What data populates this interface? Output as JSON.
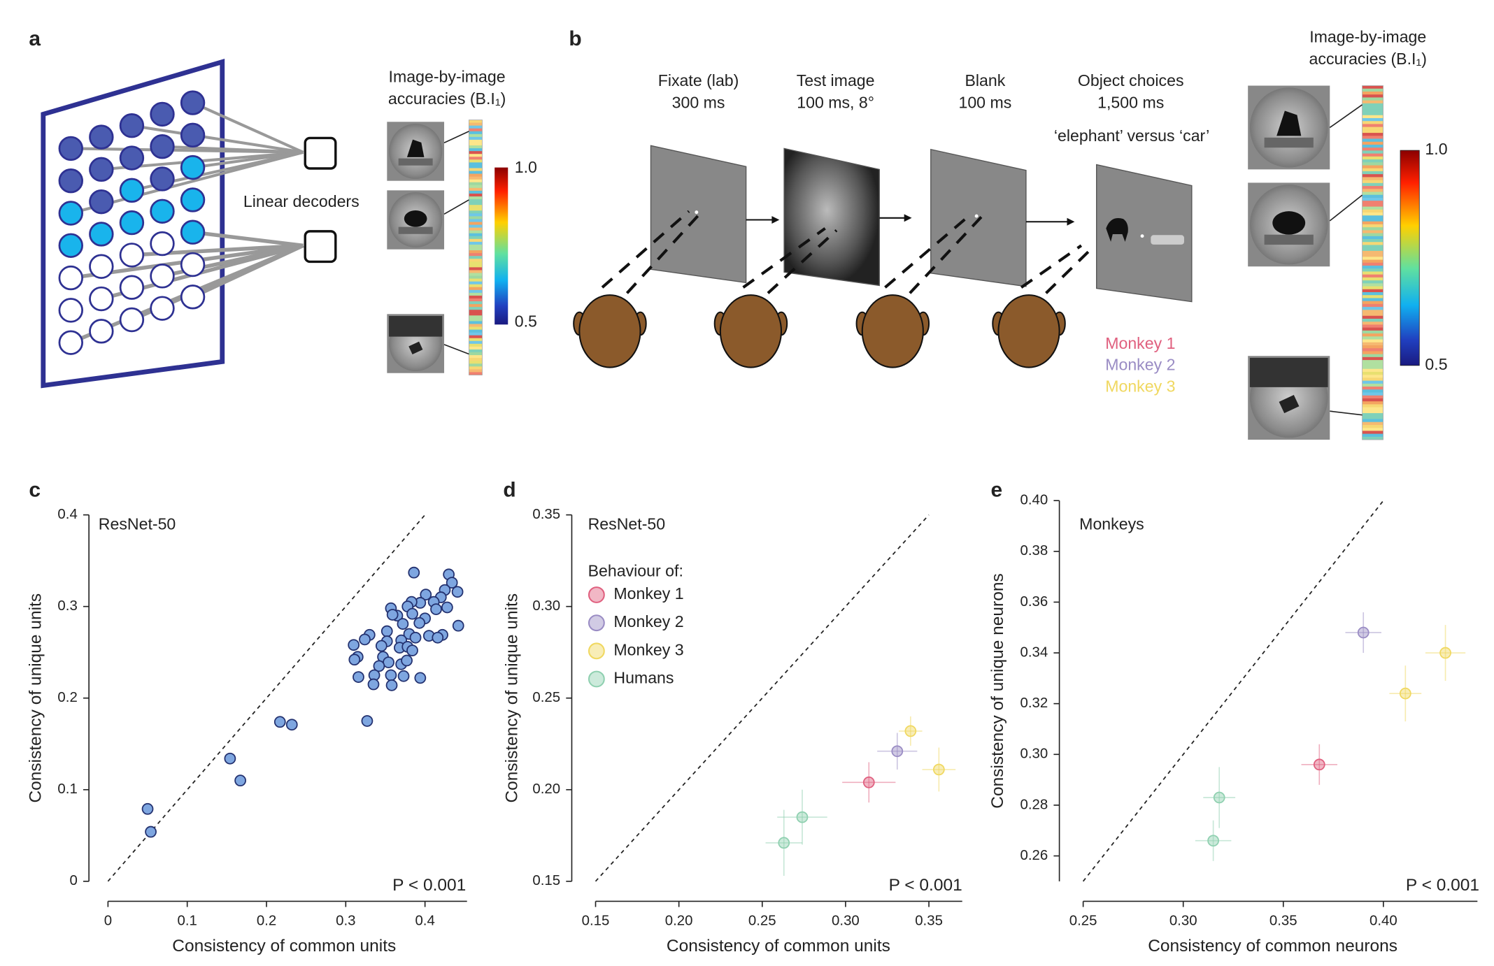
{
  "panel_a": {
    "label": "a",
    "decoder_label": "Linear decoders",
    "accuracy_title": [
      "Image-by-image",
      "accuracies (B.I₁)"
    ],
    "colorbar_ticks": [
      "1.0",
      "0.5"
    ]
  },
  "panel_b": {
    "label": "b",
    "stages": [
      {
        "name": "Fixate (lab)",
        "detail": "300 ms"
      },
      {
        "name": "Test image",
        "detail": "100 ms, 8°"
      },
      {
        "name": "Blank",
        "detail": "100 ms"
      },
      {
        "name": "Object choices",
        "detail": "1,500 ms"
      }
    ],
    "choice_text": "‘elephant’ versus ‘car’",
    "legend": [
      {
        "name": "Monkey 1",
        "color": "#e0607f"
      },
      {
        "name": "Monkey 2",
        "color": "#9a8cc4"
      },
      {
        "name": "Monkey 3",
        "color": "#f0d860"
      }
    ],
    "accuracy_title": [
      "Image-by-image",
      "accuracies (B.I₁)"
    ],
    "colorbar_ticks": [
      "1.0",
      "0.5"
    ]
  },
  "chart_data": [
    {
      "type": "scatter",
      "panel_label": "c",
      "title": "ResNet-50",
      "annotation": "P < 0.001",
      "xlabel": "Consistency of common units",
      "ylabel": "Consistency of unique units",
      "diagonal": true,
      "color": "#7ea6e0",
      "edgecolor": "#23316f",
      "xlim": [
        0,
        0.453
      ],
      "ylim": [
        0,
        0.4
      ],
      "xticks": [
        0,
        0.1,
        0.2,
        0.3,
        0.4
      ],
      "yticks": [
        0,
        0.1,
        0.2,
        0.3,
        0.4
      ],
      "x": [
        0.05,
        0.054,
        0.154,
        0.167,
        0.217,
        0.232,
        0.327,
        0.386,
        0.43,
        0.434,
        0.441,
        0.425,
        0.42,
        0.411,
        0.401,
        0.394,
        0.383,
        0.378,
        0.357,
        0.365,
        0.359,
        0.384,
        0.4,
        0.428,
        0.414,
        0.393,
        0.372,
        0.38,
        0.352,
        0.33,
        0.324,
        0.31,
        0.442,
        0.422,
        0.405,
        0.388,
        0.37,
        0.352,
        0.345,
        0.368,
        0.378,
        0.384,
        0.315,
        0.311,
        0.347,
        0.354,
        0.37,
        0.377,
        0.342,
        0.316,
        0.336,
        0.357,
        0.373,
        0.335,
        0.358,
        0.394,
        0.416
      ],
      "values": [
        0.079,
        0.054,
        0.134,
        0.11,
        0.174,
        0.171,
        0.175,
        0.337,
        0.335,
        0.326,
        0.316,
        0.318,
        0.31,
        0.305,
        0.313,
        0.304,
        0.305,
        0.3,
        0.298,
        0.29,
        0.291,
        0.292,
        0.287,
        0.299,
        0.297,
        0.282,
        0.281,
        0.27,
        0.273,
        0.269,
        0.264,
        0.258,
        0.279,
        0.269,
        0.268,
        0.266,
        0.263,
        0.262,
        0.257,
        0.255,
        0.256,
        0.252,
        0.245,
        0.242,
        0.245,
        0.239,
        0.237,
        0.241,
        0.235,
        0.223,
        0.225,
        0.225,
        0.224,
        0.215,
        0.214,
        0.222,
        0.266
      ]
    },
    {
      "type": "scatter",
      "panel_label": "d",
      "title": "ResNet-50",
      "annotation": "P < 0.001",
      "xlabel": "Consistency of common units",
      "ylabel": "Consistency of unique units",
      "diagonal": true,
      "legend_title": "Behaviour of:",
      "alpha": 0.45,
      "xlim": [
        0.15,
        0.37
      ],
      "ylim": [
        0.15,
        0.35
      ],
      "xticks": [
        0.15,
        {
          "value": 0.2,
          "label": "0.20"
        },
        0.25,
        {
          "value": 0.3,
          "label": "0.30"
        },
        0.35
      ],
      "yticks": [
        0.15,
        {
          "value": 0.2,
          "label": "0.20"
        },
        0.25,
        {
          "value": 0.3,
          "label": "0.30"
        },
        0.35
      ],
      "series": [
        {
          "name": "Monkey 1",
          "color": "#e0607f",
          "x": [
            0.314
          ],
          "values": [
            0.204
          ],
          "x_err": [
            0.016
          ],
          "y_err": [
            0.011
          ]
        },
        {
          "name": "Monkey 2",
          "color": "#9a8cc4",
          "x": [
            0.331
          ],
          "values": [
            0.221
          ],
          "x_err": [
            0.012
          ],
          "y_err": [
            0.01
          ]
        },
        {
          "name": "Monkey 3",
          "color": "#f0d860",
          "x": [
            0.339,
            0.356
          ],
          "values": [
            0.232,
            0.211
          ],
          "x_err": [
            0.007,
            0.01
          ],
          "y_err": [
            0.008,
            0.012
          ]
        },
        {
          "name": "Humans",
          "color": "#8fd0b0",
          "x": [
            0.263,
            0.274
          ],
          "values": [
            0.171,
            0.185
          ],
          "x_err": [
            0.011,
            0.015
          ],
          "y_err": [
            0.018,
            0.015
          ]
        }
      ]
    },
    {
      "type": "scatter",
      "panel_label": "e",
      "title": "Monkeys",
      "annotation": "P < 0.001",
      "xlabel": "Consistency of common neurons",
      "ylabel": "Consistency of unique neurons",
      "diagonal": true,
      "alpha": 0.45,
      "xlim": [
        0.25,
        0.447
      ],
      "ylim": [
        0.25,
        0.4
      ],
      "xticks": [
        0.25,
        {
          "value": 0.3,
          "label": "0.30"
        },
        0.35,
        {
          "value": 0.4,
          "label": "0.40"
        }
      ],
      "yticks": [
        0.26,
        0.28,
        {
          "value": 0.3,
          "label": "0.30"
        },
        0.32,
        0.34,
        0.36,
        0.38,
        {
          "value": 0.4,
          "label": "0.40"
        }
      ],
      "series": [
        {
          "color": "#e0607f",
          "x": [
            0.368
          ],
          "values": [
            0.296
          ],
          "x_err": [
            0.009
          ],
          "y_err": [
            0.008
          ]
        },
        {
          "color": "#9a8cc4",
          "x": [
            0.39
          ],
          "values": [
            0.348
          ],
          "x_err": [
            0.009
          ],
          "y_err": [
            0.008
          ]
        },
        {
          "color": "#f0d860",
          "x": [
            0.411,
            0.431
          ],
          "values": [
            0.324,
            0.34
          ],
          "x_err": [
            0.008,
            0.01
          ],
          "y_err": [
            0.011,
            0.011
          ]
        },
        {
          "color": "#8fd0b0",
          "x": [
            0.318,
            0.315
          ],
          "values": [
            0.283,
            0.266
          ],
          "x_err": [
            0.008,
            0.009
          ],
          "y_err": [
            0.012,
            0.008
          ]
        }
      ]
    }
  ]
}
